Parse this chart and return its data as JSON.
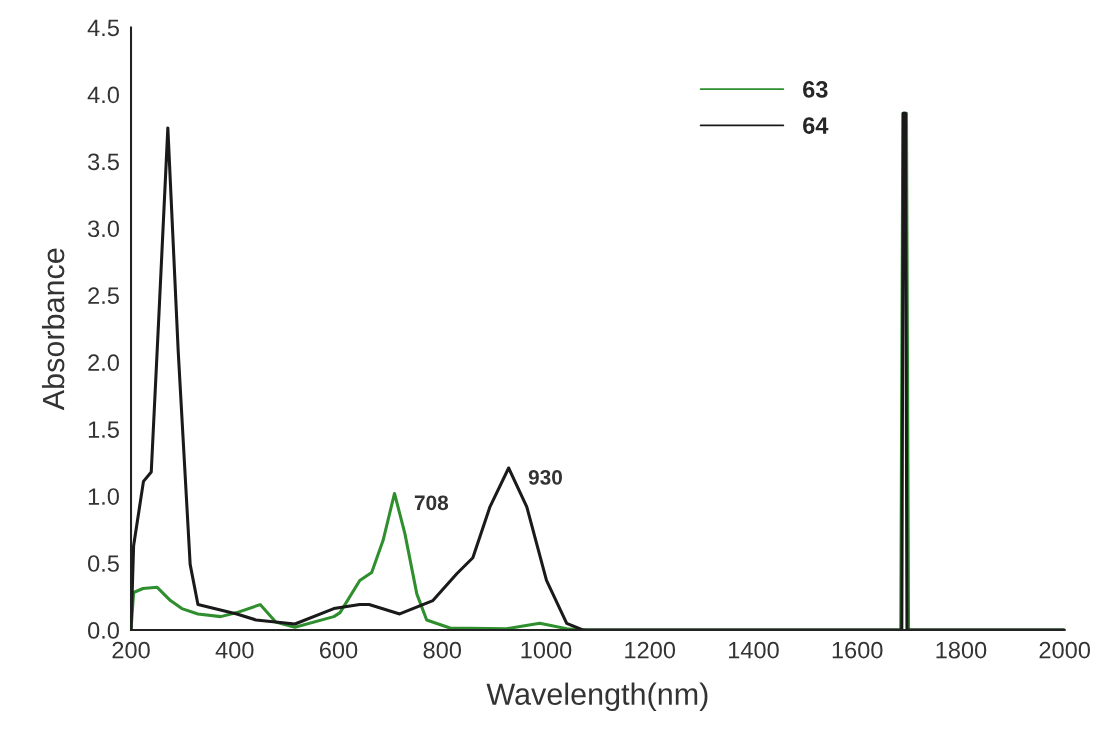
{
  "chart_data": {
    "type": "line",
    "xlabel": "Wavelength(nm)",
    "ylabel": "Absorbance",
    "xlim": [
      200,
      2000
    ],
    "xticks": [
      200,
      400,
      600,
      800,
      1000,
      1200,
      1400,
      1600,
      1800,
      2000
    ],
    "ylim": [
      0,
      4.5
    ],
    "yticks": [
      {
        "value": 0,
        "label": "0.0"
      },
      0.5,
      {
        "value": 1,
        "label": "1.0"
      },
      1.5,
      {
        "value": 2,
        "label": "2.0"
      },
      2.5,
      {
        "value": 3,
        "label": "3.0"
      },
      3.5,
      {
        "value": 4,
        "label": "4.0"
      },
      4.5
    ],
    "grid": false,
    "legend": "top right",
    "marker": "none",
    "line_style": "solid",
    "series": [
      {
        "name": "63",
        "color": "#2f8f2f",
        "x": [
          200,
          205,
          223,
          250,
          276,
          298,
          329,
          373,
          404,
          449,
          479,
          516,
          591,
          603,
          641,
          664,
          686,
          708,
          728,
          751,
          770,
          815,
          924,
          988,
          1040,
          1080,
          1684,
          1688,
          1695,
          1699,
          2000
        ],
        "values": [
          0,
          0.28,
          0.31,
          0.32,
          0.22,
          0.16,
          0.12,
          0.1,
          0.13,
          0.19,
          0.06,
          0.02,
          0.1,
          0.13,
          0.37,
          0.43,
          0.67,
          1.02,
          0.72,
          0.27,
          0.075,
          0.015,
          0.01,
          0.05,
          0.01,
          0,
          0,
          3.86,
          3.86,
          0,
          0
        ]
      },
      {
        "name": "64",
        "color": "#1a1a1a",
        "x": [
          200,
          205,
          224,
          239,
          254,
          271,
          291,
          314,
          329,
          404,
          441,
          516,
          591,
          641,
          659,
          718,
          782,
          828,
          859,
          892,
          928,
          963,
          1001,
          1040,
          1071,
          1686,
          1689,
          1693,
          1696,
          2000
        ],
        "values": [
          0,
          0.63,
          1.11,
          1.18,
          2.37,
          3.75,
          2.08,
          0.49,
          0.19,
          0.12,
          0.075,
          0.045,
          0.16,
          0.19,
          0.19,
          0.12,
          0.22,
          0.42,
          0.54,
          0.92,
          1.21,
          0.92,
          0.37,
          0.05,
          0,
          0,
          3.86,
          3.86,
          0,
          0
        ]
      }
    ],
    "annotations": [
      {
        "text": "708",
        "x": 708,
        "y": 1.02
      },
      {
        "text": "930",
        "x": 928,
        "y": 1.21
      }
    ]
  }
}
